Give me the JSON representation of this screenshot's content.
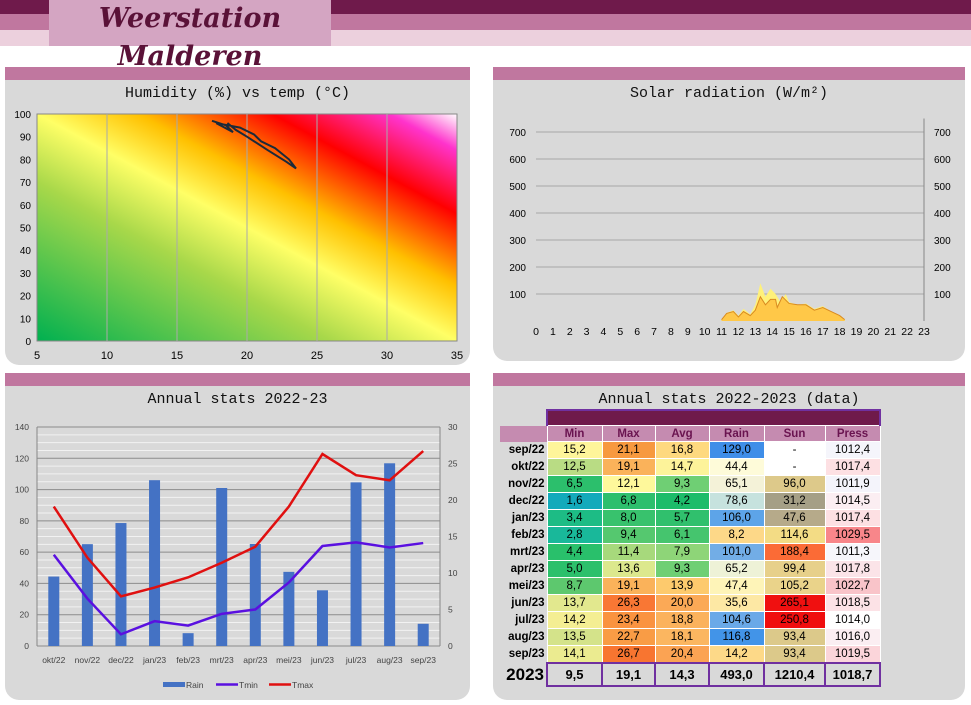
{
  "header": {
    "title": "Weerstation Malderen",
    "colors": [
      "#6f1a4b",
      "#c0779f",
      "#ecd0dd"
    ]
  },
  "humidity": {
    "title": "Humidity (%) vs temp (°C)",
    "x_ticks": [
      "5",
      "10",
      "15",
      "20",
      "25",
      "30",
      "35"
    ],
    "y_ticks": [
      "0",
      "10",
      "20",
      "30",
      "40",
      "50",
      "60",
      "70",
      "80",
      "90",
      "100"
    ],
    "trace": [
      [
        17.5,
        97
      ],
      [
        18.5,
        95
      ],
      [
        19,
        92
      ],
      [
        17.8,
        96
      ],
      [
        19.5,
        94
      ],
      [
        20.5,
        91
      ],
      [
        21,
        88
      ],
      [
        22,
        85
      ],
      [
        23,
        80
      ],
      [
        23.5,
        76
      ],
      [
        22.8,
        79
      ],
      [
        21.5,
        84
      ],
      [
        20,
        90
      ],
      [
        19.2,
        93
      ],
      [
        18.6,
        96
      ]
    ]
  },
  "solar": {
    "title": "Solar radiation (W/m²)",
    "y_ticks": [
      "100",
      "200",
      "300",
      "400",
      "500",
      "600",
      "700"
    ],
    "x_ticks": [
      "0",
      "1",
      "2",
      "3",
      "4",
      "5",
      "6",
      "7",
      "8",
      "9",
      "10",
      "11",
      "12",
      "13",
      "14",
      "15",
      "16",
      "17",
      "18",
      "19",
      "20",
      "21",
      "22",
      "23"
    ],
    "max": [
      [
        11,
        5
      ],
      [
        11.3,
        30
      ],
      [
        11.7,
        40
      ],
      [
        12,
        20
      ],
      [
        12.3,
        45
      ],
      [
        12.7,
        25
      ],
      [
        13,
        60
      ],
      [
        13.3,
        140
      ],
      [
        13.6,
        90
      ],
      [
        13.9,
        120
      ],
      [
        14.2,
        100
      ],
      [
        14.5,
        70
      ],
      [
        14.8,
        100
      ],
      [
        15,
        70
      ],
      [
        15.5,
        60
      ],
      [
        16,
        65
      ],
      [
        16.5,
        45
      ],
      [
        17,
        55
      ],
      [
        17.5,
        35
      ],
      [
        18,
        20
      ],
      [
        18.3,
        5
      ]
    ],
    "avg": [
      [
        11,
        5
      ],
      [
        11.3,
        28
      ],
      [
        11.7,
        35
      ],
      [
        12,
        15
      ],
      [
        12.3,
        35
      ],
      [
        12.7,
        20
      ],
      [
        13,
        40
      ],
      [
        13.3,
        90
      ],
      [
        13.6,
        60
      ],
      [
        13.9,
        80
      ],
      [
        14.2,
        80
      ],
      [
        14.3,
        50
      ],
      [
        14.6,
        90
      ],
      [
        15,
        65
      ],
      [
        15.5,
        60
      ],
      [
        16,
        60
      ],
      [
        16.5,
        40
      ],
      [
        17,
        50
      ],
      [
        17.5,
        35
      ],
      [
        18,
        20
      ],
      [
        18.3,
        5
      ]
    ]
  },
  "annual_chart": {
    "title": "Annual stats 2022-23",
    "type": "bar+line",
    "categories": [
      "okt/22",
      "nov/22",
      "dec/22",
      "jan/23",
      "feb/23",
      "mrt/23",
      "apr/23",
      "mei/23",
      "jun/23",
      "jul/23",
      "aug/23",
      "sep/23"
    ],
    "left_ticks": [
      "0",
      "20",
      "40",
      "60",
      "80",
      "100",
      "120",
      "140"
    ],
    "right_ticks": [
      "0",
      "5",
      "10",
      "15",
      "20",
      "25",
      "30"
    ],
    "series": [
      {
        "name": "Rain",
        "color": "#4472c4",
        "values": [
          44.4,
          65.1,
          78.6,
          106.0,
          8.2,
          101.0,
          65.2,
          47.4,
          35.6,
          104.6,
          116.8,
          14.2
        ]
      },
      {
        "name": "Tmin",
        "color": "#5a10e0",
        "values": [
          12.5,
          6.5,
          1.6,
          3.4,
          2.8,
          4.4,
          5.0,
          8.7,
          13.7,
          14.2,
          13.5,
          14.1
        ]
      },
      {
        "name": "Tmax",
        "color": "#e01010",
        "values": [
          19.1,
          12.1,
          6.8,
          8.0,
          9.4,
          11.4,
          13.6,
          19.1,
          26.3,
          23.4,
          22.7,
          26.7
        ]
      }
    ]
  },
  "table": {
    "title": "Annual stats 2022-2023 (data)",
    "columns": [
      "Min",
      "Max",
      "Avg",
      "Rain",
      "Sun",
      "Press"
    ],
    "rows": [
      {
        "label": "sep/22",
        "values": [
          "15,2",
          "21,1",
          "16,8",
          "129,0",
          "-",
          "1012,4"
        ],
        "colors": [
          "#fef59a",
          "#f7993f",
          "#fed97f",
          "#3f8ee8",
          "#ffffff",
          "#f5f5fb"
        ]
      },
      {
        "label": "okt/22",
        "values": [
          "12,5",
          "19,1",
          "14,7",
          "44,4",
          "-",
          "1017,4"
        ],
        "colors": [
          "#b9dc84",
          "#fab25a",
          "#fdf39a",
          "#fefbd9",
          "#ffffff",
          "#fde0e3"
        ]
      },
      {
        "label": "nov/22",
        "values": [
          "6,5",
          "12,1",
          "9,3",
          "65,1",
          "96,0",
          "1011,9"
        ],
        "colors": [
          "#2cbf6c",
          "#fef89b",
          "#6fcf74",
          "#f4f2d8",
          "#ddc98a",
          "#f4f4fb"
        ]
      },
      {
        "label": "dec/22",
        "values": [
          "1,6",
          "6,8",
          "4,2",
          "78,6",
          "31,2",
          "1014,5"
        ],
        "colors": [
          "#13aabb",
          "#2dbf6d",
          "#1cbc6a",
          "#c6e2de",
          "#a59f86",
          "#fbeef2"
        ]
      },
      {
        "label": "jan/23",
        "values": [
          "3,4",
          "8,0",
          "5,7",
          "106,0",
          "47,6",
          "1017,4"
        ],
        "colors": [
          "#1dbc85",
          "#38c26d",
          "#30c06d",
          "#5da4e8",
          "#b6aa8a",
          "#fde0e3"
        ]
      },
      {
        "label": "feb/23",
        "values": [
          "2,8",
          "9,4",
          "6,1",
          "8,2",
          "114,6",
          "1029,5"
        ],
        "colors": [
          "#19b89a",
          "#55c86f",
          "#45c56e",
          "#fdd888",
          "#f3dc85",
          "#f8868a"
        ]
      },
      {
        "label": "mrt/23",
        "values": [
          "4,4",
          "11,4",
          "7,9",
          "101,0",
          "188,4",
          "1011,3"
        ],
        "colors": [
          "#29c06b",
          "#a7d97c",
          "#8ed578",
          "#72ade6",
          "#fb6b36",
          "#f6f6fb"
        ]
      },
      {
        "label": "apr/23",
        "values": [
          "5,0",
          "13,6",
          "9,3",
          "65,2",
          "99,4",
          "1017,8"
        ],
        "colors": [
          "#2cc06b",
          "#dce88d",
          "#6fcf74",
          "#eef2d7",
          "#e7d08a",
          "#fbe4e8"
        ]
      },
      {
        "label": "mei/23",
        "values": [
          "8,7",
          "19,1",
          "13,9",
          "47,4",
          "105,2",
          "1022,7"
        ],
        "colors": [
          "#5dc86e",
          "#fab25a",
          "#fdca6d",
          "#fef4b8",
          "#ead38a",
          "#f9c4c9"
        ]
      },
      {
        "label": "jun/23",
        "values": [
          "13,7",
          "26,3",
          "20,0",
          "35,6",
          "265,1",
          "1018,5"
        ],
        "colors": [
          "#e2e88e",
          "#f97734",
          "#fba956",
          "#fde8a4",
          "#f01010",
          "#fce2e6"
        ]
      },
      {
        "label": "jul/23",
        "values": [
          "14,2",
          "23,4",
          "18,8",
          "104,6",
          "250,8",
          "1014,0"
        ],
        "colors": [
          "#f4ee93",
          "#fa9340",
          "#fbb25c",
          "#6aa9e8",
          "#f00e0e",
          "#ffffff"
        ]
      },
      {
        "label": "aug/23",
        "values": [
          "13,5",
          "22,7",
          "18,1",
          "116,8",
          "93,4",
          "1016,0"
        ],
        "colors": [
          "#d4e38a",
          "#f99c45",
          "#fbb660",
          "#4294e8",
          "#dcc98a",
          "#fbeef2"
        ]
      },
      {
        "label": "sep/23",
        "values": [
          "14,1",
          "26,7",
          "20,4",
          "14,2",
          "93,4",
          "1019,5"
        ],
        "colors": [
          "#ebeb90",
          "#f87530",
          "#fba353",
          "#fdd988",
          "#dcc98a",
          "#fbd5da"
        ]
      }
    ],
    "total": {
      "label": "2023",
      "values": [
        "9,5",
        "19,1",
        "14,3",
        "493,0",
        "1210,4",
        "1018,7"
      ]
    }
  }
}
